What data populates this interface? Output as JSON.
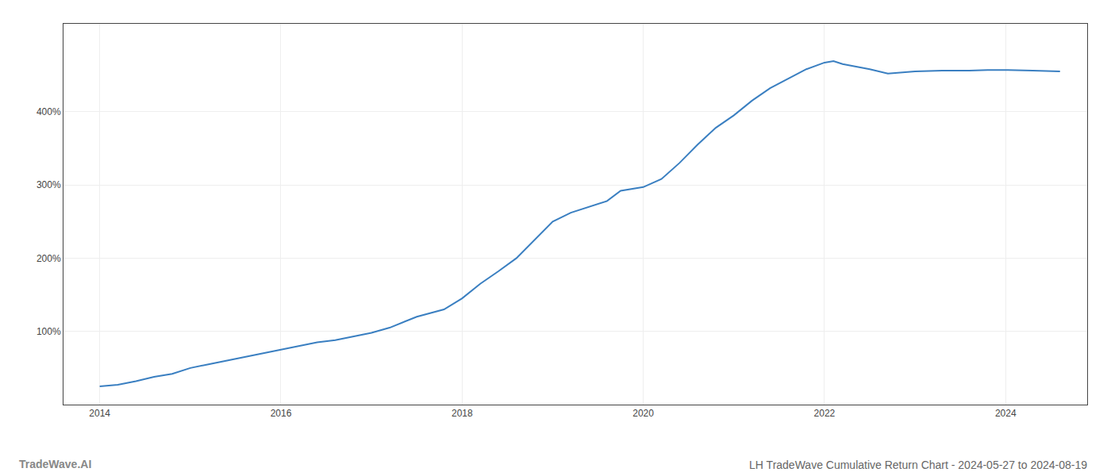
{
  "chart_data": {
    "type": "line",
    "title": "LH TradeWave Cumulative Return Chart - 2024-05-27 to 2024-08-19",
    "annotations": [
      "TradeWave.AI"
    ],
    "color": "#3a7fc1",
    "x": [
      2014.0,
      2014.2,
      2014.4,
      2014.6,
      2014.8,
      2015.0,
      2015.2,
      2015.4,
      2015.6,
      2015.8,
      2016.0,
      2016.2,
      2016.4,
      2016.6,
      2016.8,
      2017.0,
      2017.2,
      2017.4,
      2017.5,
      2017.8,
      2018.0,
      2018.2,
      2018.4,
      2018.6,
      2018.8,
      2019.0,
      2019.2,
      2019.4,
      2019.6,
      2019.75,
      2020.0,
      2020.2,
      2020.4,
      2020.6,
      2020.8,
      2021.0,
      2021.2,
      2021.4,
      2021.6,
      2021.8,
      2022.0,
      2022.1,
      2022.2,
      2022.5,
      2022.7,
      2023.0,
      2023.3,
      2023.6,
      2023.8,
      2024.0,
      2024.3,
      2024.6
    ],
    "values": [
      25,
      27,
      32,
      38,
      42,
      50,
      55,
      60,
      65,
      70,
      75,
      80,
      85,
      88,
      93,
      98,
      105,
      115,
      120,
      130,
      145,
      165,
      182,
      200,
      225,
      250,
      262,
      270,
      278,
      292,
      297,
      308,
      330,
      355,
      378,
      395,
      415,
      432,
      445,
      458,
      467,
      469,
      465,
      458,
      452,
      455,
      456,
      456,
      457,
      457,
      456,
      455
    ],
    "xlim": [
      2013.6,
      2024.9
    ],
    "ylim": [
      0,
      520
    ],
    "xticks": [
      2014,
      2016,
      2018,
      2020,
      2022,
      2024
    ],
    "yticks": [
      {
        "value": 100,
        "label": "100%"
      },
      {
        "value": 200,
        "label": "200%"
      },
      {
        "value": 300,
        "label": "300%"
      },
      {
        "value": 400,
        "label": "400%"
      }
    ],
    "grid": true
  }
}
